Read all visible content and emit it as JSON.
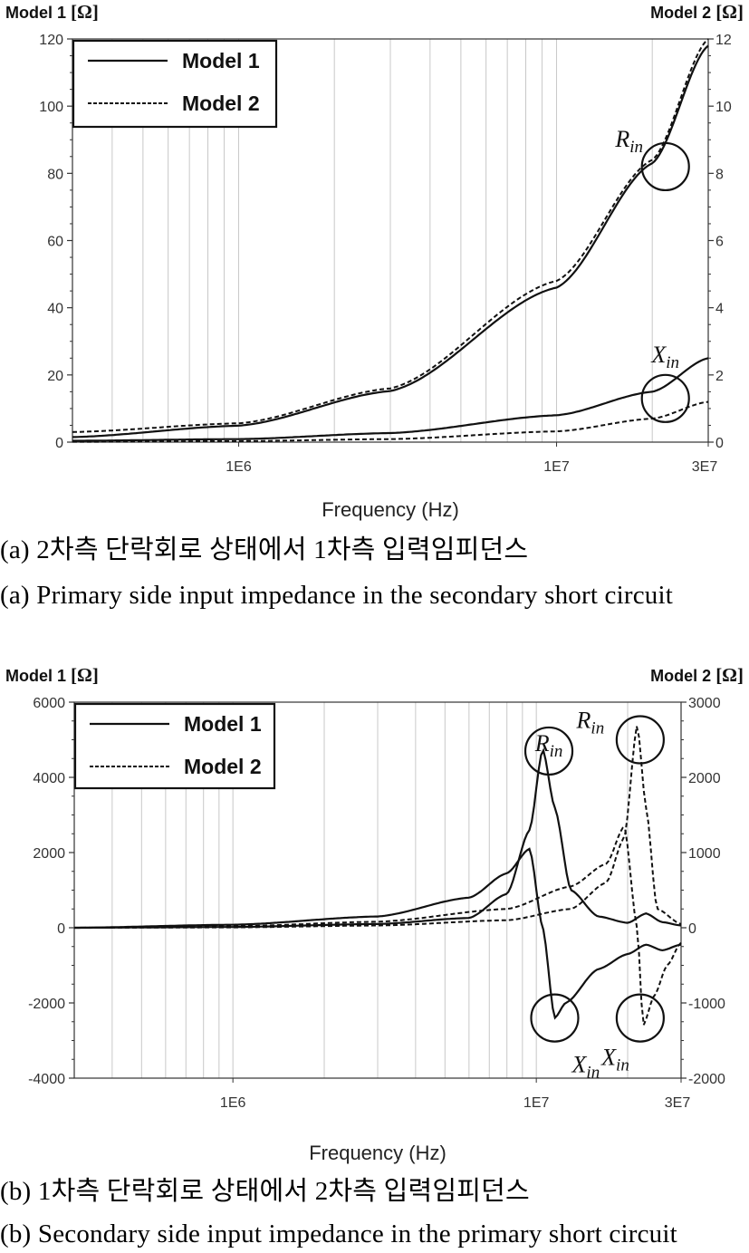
{
  "chart_data": [
    {
      "type": "line",
      "xlabel": "Frequency (Hz)",
      "xscale": "log",
      "xlim": [
        300000,
        30000000
      ],
      "xtick_labels": [
        "1E6",
        "1E7",
        "3E7"
      ],
      "ylabel_left": "Model 1",
      "ylabel_left_unit": "[Ω]",
      "ylim_left": [
        0,
        120
      ],
      "ylabel_right": "Model 2",
      "ylabel_right_unit": "[Ω]",
      "ylim_right": [
        0,
        12
      ],
      "left_tick_labels": [
        "0",
        "20",
        "40",
        "60",
        "80",
        "100",
        "120"
      ],
      "right_tick_labels": [
        "0",
        "2",
        "4",
        "6",
        "8",
        "10",
        "12"
      ],
      "grid": "vertical",
      "legend": {
        "position": "top-left",
        "entries": [
          "Model 1",
          "Model 2"
        ]
      },
      "annotations": [
        {
          "base": "R",
          "sub": "in",
          "circle_at": [
            22000000,
            82
          ]
        },
        {
          "base": "X",
          "sub": "in",
          "circle_at": [
            22000000,
            13
          ]
        }
      ],
      "series": [
        {
          "name": "Model 1",
          "curve": "Rin",
          "style": "solid",
          "axis": "left",
          "x": [
            300000,
            1000000,
            3000000,
            10000000,
            20000000,
            30000000
          ],
          "y": [
            1.5,
            4.9,
            15.2,
            46,
            83,
            118
          ]
        },
        {
          "name": "Model 1",
          "curve": "Xin",
          "style": "solid",
          "axis": "left",
          "x": [
            300000,
            1000000,
            3000000,
            10000000,
            20000000,
            30000000
          ],
          "y": [
            0.4,
            0.9,
            2.7,
            8,
            15,
            25
          ]
        },
        {
          "name": "Model 2",
          "curve": "Rin",
          "style": "dashed",
          "axis": "left",
          "x": [
            300000,
            1000000,
            3000000,
            10000000,
            20000000,
            30000000
          ],
          "y": [
            3,
            5.6,
            16,
            48,
            84,
            120
          ]
        },
        {
          "name": "Model 2",
          "curve": "Xin",
          "style": "dashed",
          "axis": "left",
          "x": [
            300000,
            1000000,
            3000000,
            10000000,
            20000000,
            30000000
          ],
          "y": [
            0.1,
            0.3,
            0.9,
            3.2,
            7,
            12
          ]
        }
      ]
    },
    {
      "type": "line",
      "xlabel": "Frequency (Hz)",
      "xscale": "log",
      "xlim": [
        300000,
        30000000
      ],
      "xtick_labels": [
        "1E6",
        "1E7",
        "3E7"
      ],
      "ylabel_left": "Model 1",
      "ylabel_left_unit": "[Ω]",
      "ylim_left": [
        -4000,
        6000
      ],
      "ylabel_right": "Model 2",
      "ylabel_right_unit": "[Ω]",
      "ylim_right": [
        -2000,
        3000
      ],
      "left_tick_labels": [
        "-4000",
        "-2000",
        "0",
        "2000",
        "4000",
        "6000"
      ],
      "right_tick_labels": [
        "-2000",
        "-1000",
        "0",
        "1000",
        "2000",
        "3000"
      ],
      "grid": "vertical",
      "legend": {
        "position": "top-left",
        "entries": [
          "Model 1",
          "Model 2"
        ]
      },
      "annotations": [
        {
          "base": "R",
          "sub": "in",
          "circle_at": [
            11000000,
            4700
          ]
        },
        {
          "base": "R",
          "sub": "in",
          "circle_at": [
            22000000,
            5000
          ]
        },
        {
          "base": "X",
          "sub": "in",
          "circle_at": [
            11500000,
            -2400
          ]
        },
        {
          "base": "X",
          "sub": "in",
          "circle_at": [
            22000000,
            -2400
          ]
        }
      ],
      "series": [
        {
          "name": "Model 1",
          "curve": "Rin",
          "style": "solid",
          "axis": "left",
          "x": [
            300000,
            1000000,
            3000000,
            6000000,
            8000000,
            9500000,
            10500000,
            11500000,
            13000000,
            16000000,
            20000000,
            23000000,
            26000000,
            30000000
          ],
          "y": [
            0,
            20,
            100,
            260,
            900,
            2600,
            4750,
            3200,
            1000,
            300,
            130,
            380,
            150,
            60
          ]
        },
        {
          "name": "Model 1",
          "curve": "Xin",
          "style": "solid",
          "axis": "left",
          "x": [
            300000,
            1000000,
            3000000,
            6000000,
            8000000,
            9500000,
            10500000,
            11500000,
            12500000,
            16000000,
            20000000,
            23000000,
            26000000,
            30000000
          ],
          "y": [
            0,
            80,
            300,
            800,
            1450,
            2100,
            0,
            -2400,
            -2000,
            -1100,
            -700,
            -450,
            -600,
            -450
          ]
        },
        {
          "name": "Model 2",
          "curve": "Rin",
          "style": "dashed",
          "axis": "right",
          "x": [
            300000,
            1000000,
            3000000,
            8000000,
            13000000,
            17000000,
            19500000,
            21500000,
            23000000,
            25000000,
            30000000
          ],
          "y": [
            0,
            5,
            30,
            100,
            250,
            600,
            1200,
            2700,
            1600,
            250,
            50
          ]
        },
        {
          "name": "Model 2",
          "curve": "Xin",
          "style": "dashed",
          "axis": "right",
          "x": [
            300000,
            1000000,
            3000000,
            8000000,
            13000000,
            17000000,
            19500000,
            21500000,
            22500000,
            24500000,
            27000000,
            30000000
          ],
          "y": [
            0,
            20,
            80,
            250,
            550,
            850,
            1350,
            0,
            -1300,
            -900,
            -500,
            -200
          ]
        }
      ]
    }
  ],
  "captions": {
    "a_korean": "(a) 2차측 단락회로 상태에서 1차측 입력임피던스",
    "a_english": "(a) Primary side input impedance in the secondary short circuit",
    "b_korean": "(b) 1차측 단락회로 상태에서 2차측 입력임피던스",
    "b_english": "(b) Secondary side input impedance in the primary short circuit"
  }
}
